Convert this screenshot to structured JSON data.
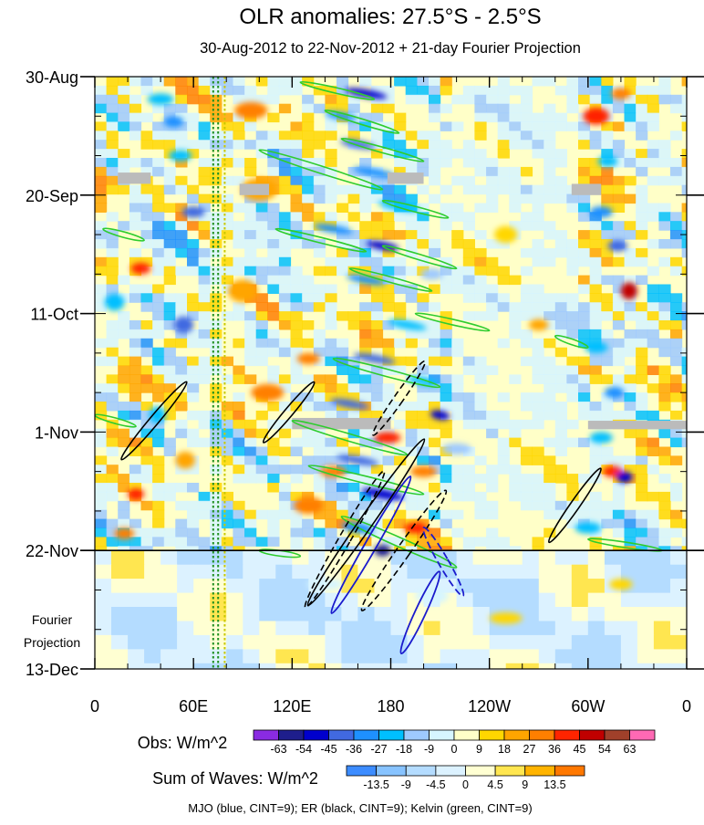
{
  "chart_data": {
    "type": "heatmap",
    "title": "OLR anomalies: 27.5°S - 2.5°S",
    "subtitle": "30-Aug-2012 to 22-Nov-2012 + 21-day Fourier Projection",
    "x_ticks": [
      {
        "lon": 0,
        "label": "0"
      },
      {
        "lon": 60,
        "label": "60E"
      },
      {
        "lon": 120,
        "label": "120E"
      },
      {
        "lon": 180,
        "label": "180"
      },
      {
        "lon": 240,
        "label": "120W"
      },
      {
        "lon": 300,
        "label": "60W"
      },
      {
        "lon": 360,
        "label": "0"
      }
    ],
    "x_range": [
      0,
      360
    ],
    "y_ticks": [
      {
        "day": 0,
        "label": "30-Aug"
      },
      {
        "day": 21,
        "label": "20-Sep"
      },
      {
        "day": 42,
        "label": "11-Oct"
      },
      {
        "day": 63,
        "label": "1-Nov"
      },
      {
        "day": 84,
        "label": "22-Nov"
      },
      {
        "day": 105,
        "label": "13-Dec"
      }
    ],
    "y_range_days": [
      0,
      105
    ],
    "observation_end_day": 84,
    "projection_label": [
      "Fourier",
      "Projection"
    ],
    "reference_lines_lon": [
      {
        "lon": 72,
        "color": "#1f8f1f"
      },
      {
        "lon": 75,
        "color": "#1f8f1f"
      },
      {
        "lon": 79,
        "color": "#c8c800"
      }
    ],
    "obs_colorbar": {
      "label": "Obs: W/m^2",
      "levels": [
        "-63",
        "-54",
        "-45",
        "-36",
        "-27",
        "-18",
        "-9",
        "0",
        "9",
        "18",
        "27",
        "36",
        "45",
        "54",
        "63"
      ],
      "colors": [
        "#8a2be2",
        "#1e1e8c",
        "#0000cd",
        "#4169e1",
        "#1e90ff",
        "#00bfff",
        "#9ec9ff",
        "#d6f5ff",
        "#ffffc8",
        "#ffd700",
        "#ffa500",
        "#ff7f00",
        "#ff2400",
        "#c00000",
        "#a0402a",
        "#ff69b4"
      ]
    },
    "waves_colorbar": {
      "label": "Sum of Waves: W/m^2",
      "levels": [
        "-13.5",
        "-9",
        "-4.5",
        "0",
        "4.5",
        "9",
        "13.5"
      ],
      "colors": [
        "#3c8cff",
        "#87c3ff",
        "#b4dcff",
        "#dcf2ff",
        "#ffffd2",
        "#ffe650",
        "#ffb400",
        "#ff7800"
      ]
    },
    "footer": "MJO (blue, CINT=9); ER (black, CINT=9); Kelvin (green, CINT=9)",
    "blobs": [
      {
        "lon": 40,
        "day": 4,
        "w": 16,
        "h": 2,
        "v": -27
      },
      {
        "lon": 48,
        "day": 8,
        "w": 12,
        "h": 2,
        "v": -36
      },
      {
        "lon": 52,
        "day": 14,
        "w": 14,
        "h": 2,
        "v": -27
      },
      {
        "lon": 60,
        "day": 24,
        "w": 14,
        "h": 2,
        "v": -45
      },
      {
        "lon": 28,
        "day": 34,
        "w": 12,
        "h": 2,
        "v": 36
      },
      {
        "lon": 54,
        "day": 44,
        "w": 12,
        "h": 3,
        "v": -45
      },
      {
        "lon": 12,
        "day": 40,
        "w": 12,
        "h": 3,
        "v": -27
      },
      {
        "lon": 38,
        "day": 60,
        "w": 10,
        "h": 3,
        "v": -27
      },
      {
        "lon": 25,
        "day": 74,
        "w": 10,
        "h": 2,
        "v": 36
      },
      {
        "lon": 18,
        "day": 81,
        "w": 12,
        "h": 2,
        "v": 27
      },
      {
        "lon": 55,
        "day": 68,
        "w": 12,
        "h": 3,
        "v": 18
      },
      {
        "lon": 95,
        "day": 6,
        "w": 20,
        "h": 3,
        "v": 27
      },
      {
        "lon": 100,
        "day": 20,
        "w": 22,
        "h": 4,
        "v": 18
      },
      {
        "lon": 90,
        "day": 38,
        "w": 18,
        "h": 4,
        "v": 18
      },
      {
        "lon": 105,
        "day": 56,
        "w": 20,
        "h": 3,
        "v": 27
      },
      {
        "lon": 130,
        "day": 76,
        "w": 18,
        "h": 3,
        "v": 27
      },
      {
        "lon": 165,
        "day": 3,
        "w": 26,
        "h": 1.4,
        "v": -54
      },
      {
        "lon": 150,
        "day": 7,
        "w": 20,
        "h": 1.4,
        "v": -36
      },
      {
        "lon": 160,
        "day": 12,
        "w": 22,
        "h": 1.4,
        "v": -45
      },
      {
        "lon": 170,
        "day": 17,
        "w": 26,
        "h": 1.4,
        "v": -36
      },
      {
        "lon": 185,
        "day": 23,
        "w": 26,
        "h": 1.4,
        "v": -27
      },
      {
        "lon": 145,
        "day": 27,
        "w": 24,
        "h": 1.4,
        "v": -36
      },
      {
        "lon": 175,
        "day": 30,
        "w": 20,
        "h": 1.4,
        "v": -54
      },
      {
        "lon": 165,
        "day": 36,
        "w": 24,
        "h": 1.4,
        "v": -36
      },
      {
        "lon": 190,
        "day": 44,
        "w": 24,
        "h": 1.4,
        "v": -27
      },
      {
        "lon": 170,
        "day": 50,
        "w": 26,
        "h": 1.4,
        "v": -45
      },
      {
        "lon": 200,
        "day": 54,
        "w": 20,
        "h": 1.4,
        "v": -27
      },
      {
        "lon": 155,
        "day": 58,
        "w": 24,
        "h": 1.4,
        "v": -45
      },
      {
        "lon": 210,
        "day": 60,
        "w": 12,
        "h": 1.6,
        "v": -54
      },
      {
        "lon": 160,
        "day": 68,
        "w": 26,
        "h": 1.4,
        "v": -45
      },
      {
        "lon": 175,
        "day": 74,
        "w": 26,
        "h": 1.6,
        "v": -54
      },
      {
        "lon": 160,
        "day": 80,
        "w": 20,
        "h": 1.8,
        "v": -36
      },
      {
        "lon": 178,
        "day": 64,
        "w": 16,
        "h": 2,
        "v": 36
      },
      {
        "lon": 175,
        "day": 84,
        "w": 10,
        "h": 2,
        "v": -63
      },
      {
        "lon": 195,
        "day": 80,
        "w": 14,
        "h": 2,
        "v": 36
      },
      {
        "lon": 145,
        "day": 70,
        "w": 16,
        "h": 2,
        "v": 27
      },
      {
        "lon": 200,
        "day": 70,
        "w": 16,
        "h": 2,
        "v": 27
      },
      {
        "lon": 130,
        "day": 50,
        "w": 14,
        "h": 2,
        "v": 27
      },
      {
        "lon": 205,
        "day": 35,
        "w": 14,
        "h": 2,
        "v": -18
      },
      {
        "lon": 220,
        "day": 66,
        "w": 18,
        "h": 2,
        "v": -18
      },
      {
        "lon": 305,
        "day": 7,
        "w": 16,
        "h": 3,
        "v": 36
      },
      {
        "lon": 320,
        "day": 3,
        "w": 12,
        "h": 2,
        "v": 27
      },
      {
        "lon": 312,
        "day": 15,
        "w": 12,
        "h": 2,
        "v": -27
      },
      {
        "lon": 308,
        "day": 24,
        "w": 14,
        "h": 2,
        "v": -36
      },
      {
        "lon": 318,
        "day": 30,
        "w": 12,
        "h": 2,
        "v": -45
      },
      {
        "lon": 325,
        "day": 38,
        "w": 10,
        "h": 3,
        "v": 45
      },
      {
        "lon": 305,
        "day": 48,
        "w": 14,
        "h": 2,
        "v": -27
      },
      {
        "lon": 316,
        "day": 56,
        "w": 12,
        "h": 2,
        "v": -36
      },
      {
        "lon": 308,
        "day": 64,
        "w": 14,
        "h": 2,
        "v": -27
      },
      {
        "lon": 315,
        "day": 70,
        "w": 12,
        "h": 2,
        "v": 36
      },
      {
        "lon": 322,
        "day": 71,
        "w": 10,
        "h": 2,
        "v": -54
      },
      {
        "lon": 300,
        "day": 80,
        "w": 16,
        "h": 2,
        "v": -27
      },
      {
        "lon": 270,
        "day": 44,
        "w": 12,
        "h": 2,
        "v": 18
      },
      {
        "lon": 250,
        "day": 28,
        "w": 14,
        "h": 3,
        "v": 9
      },
      {
        "lon": 140,
        "day": 90,
        "w": 22,
        "h": 2,
        "v": -9
      },
      {
        "lon": 205,
        "day": 92,
        "w": 20,
        "h": 3,
        "v": -9
      },
      {
        "lon": 250,
        "day": 96,
        "w": 20,
        "h": 2,
        "v": 9
      },
      {
        "lon": 320,
        "day": 90,
        "w": 14,
        "h": 2,
        "v": 9
      }
    ],
    "gaps": [
      {
        "lon0": 14,
        "lon1": 34,
        "day0": 17,
        "day1": 19
      },
      {
        "lon0": 88,
        "lon1": 106,
        "day0": 19,
        "day1": 21
      },
      {
        "lon0": 178,
        "lon1": 200,
        "day0": 17,
        "day1": 19
      },
      {
        "lon0": 290,
        "lon1": 308,
        "day0": 19,
        "day1": 21
      },
      {
        "lon0": 120,
        "lon1": 180,
        "day0": 60.5,
        "day1": 62.5
      },
      {
        "lon0": 300,
        "lon1": 360,
        "day0": 61,
        "day1": 62.5
      }
    ],
    "kelvin_contours": [
      {
        "lon0": 125,
        "day0": 1,
        "lon1": 170,
        "day1": 4,
        "ww": 3
      },
      {
        "lon0": 140,
        "day0": 6,
        "lon1": 185,
        "day1": 10,
        "ww": 3
      },
      {
        "lon0": 150,
        "day0": 11,
        "lon1": 200,
        "day1": 15,
        "ww": 3
      },
      {
        "lon0": 100,
        "day0": 13,
        "lon1": 175,
        "day1": 20,
        "ww": 4
      },
      {
        "lon0": 175,
        "day0": 22,
        "lon1": 215,
        "day1": 25,
        "ww": 3
      },
      {
        "lon0": 110,
        "day0": 27,
        "lon1": 165,
        "day1": 31,
        "ww": 3
      },
      {
        "lon0": 175,
        "day0": 30,
        "lon1": 220,
        "day1": 34,
        "ww": 3
      },
      {
        "lon0": 155,
        "day0": 34,
        "lon1": 205,
        "day1": 38,
        "ww": 3
      },
      {
        "lon0": 195,
        "day0": 42,
        "lon1": 240,
        "day1": 45,
        "ww": 3
      },
      {
        "lon0": 145,
        "day0": 50,
        "lon1": 210,
        "day1": 55,
        "ww": 4
      },
      {
        "lon0": 120,
        "day0": 61,
        "lon1": 190,
        "day1": 67,
        "ww": 4
      },
      {
        "lon0": 130,
        "day0": 69,
        "lon1": 200,
        "day1": 74,
        "ww": 4
      },
      {
        "lon0": 150,
        "day0": 78,
        "lon1": 220,
        "day1": 87,
        "ww": 5
      },
      {
        "lon0": 280,
        "day0": 46,
        "lon1": 300,
        "day1": 48,
        "ww": 3
      },
      {
        "lon0": 300,
        "day0": 82,
        "lon1": 345,
        "day1": 84,
        "ww": 3
      },
      {
        "lon0": 5,
        "day0": 27,
        "lon1": 30,
        "day1": 29,
        "ww": 3
      },
      {
        "lon0": 0,
        "day0": 60,
        "lon1": 25,
        "day1": 62,
        "ww": 3
      },
      {
        "lon0": 100,
        "day0": 84,
        "lon1": 125,
        "day1": 85,
        "ww": 3
      }
    ],
    "er_contours": [
      {
        "lon": 36,
        "day": 61,
        "rx": 2.8,
        "ry": 9,
        "rot": 40,
        "dash": false
      },
      {
        "lon": 118,
        "day": 59.5,
        "rx": 2.6,
        "ry": 7,
        "rot": 40,
        "dash": false
      },
      {
        "lon": 185,
        "day": 57,
        "rx": 2.8,
        "ry": 8,
        "rot": 35,
        "dash": true
      },
      {
        "lon": 165,
        "day": 79,
        "rx": 4,
        "ry": 18,
        "rot": 35,
        "dash": false
      },
      {
        "lon": 152,
        "day": 82,
        "rx": 3.5,
        "ry": 14,
        "rot": 30,
        "dash": true
      },
      {
        "lon": 188,
        "day": 84,
        "rx": 4,
        "ry": 13,
        "rot": 35,
        "dash": true
      },
      {
        "lon": 292,
        "day": 76,
        "rx": 2.8,
        "ry": 8,
        "rot": 35,
        "dash": false
      }
    ],
    "mjo_contours": [
      {
        "lon": 168,
        "day": 83,
        "rx": 3.5,
        "ry": 14,
        "rot": 30,
        "dash": false
      },
      {
        "lon": 212,
        "day": 86,
        "rx": 3,
        "ry": 7,
        "rot": -30,
        "dash": true
      },
      {
        "lon": 198,
        "day": 95,
        "rx": 3.2,
        "ry": 8,
        "rot": 25,
        "dash": false
      }
    ]
  }
}
